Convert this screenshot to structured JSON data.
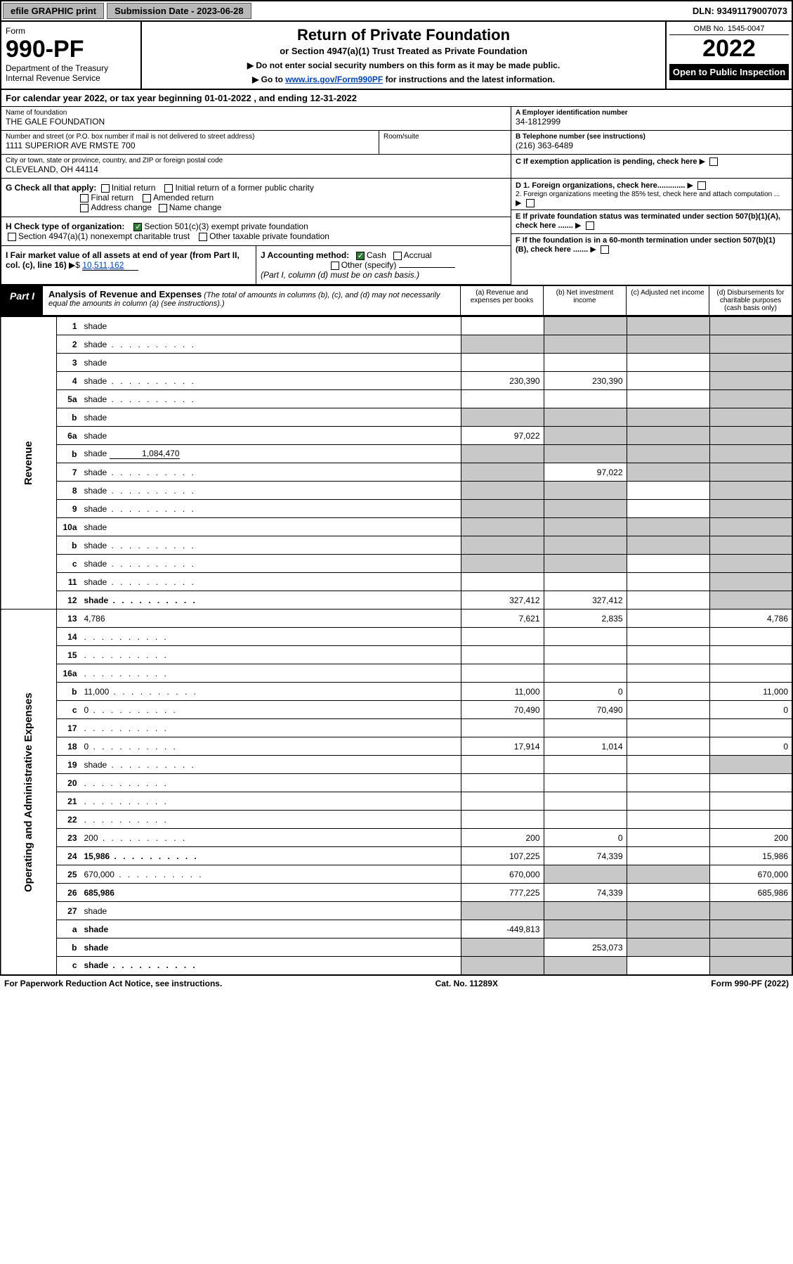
{
  "topbar": {
    "efile": "efile GRAPHIC print",
    "submission": "Submission Date - 2023-06-28",
    "dln": "DLN: 93491179007073"
  },
  "header": {
    "form_label": "Form",
    "form_no": "990-PF",
    "dept": "Department of the Treasury",
    "irs": "Internal Revenue Service",
    "title": "Return of Private Foundation",
    "subtitle": "or Section 4947(a)(1) Trust Treated as Private Foundation",
    "note1": "▶ Do not enter social security numbers on this form as it may be made public.",
    "note2_pre": "▶ Go to ",
    "note2_link": "www.irs.gov/Form990PF",
    "note2_post": " for instructions and the latest information.",
    "omb": "OMB No. 1545-0047",
    "year": "2022",
    "open": "Open to Public Inspection"
  },
  "calyear": "For calendar year 2022, or tax year beginning 01-01-2022                              , and ending 12-31-2022",
  "ident": {
    "name_lbl": "Name of foundation",
    "name": "THE GALE FOUNDATION",
    "addr_lbl": "Number and street (or P.O. box number if mail is not delivered to street address)",
    "addr": "1111 SUPERIOR AVE RMSTE 700",
    "room_lbl": "Room/suite",
    "city_lbl": "City or town, state or province, country, and ZIP or foreign postal code",
    "city": "CLEVELAND, OH  44114",
    "a_lbl": "A Employer identification number",
    "a_val": "34-1812999",
    "b_lbl": "B Telephone number (see instructions)",
    "b_val": "(216) 363-6489",
    "c_lbl": "C If exemption application is pending, check here",
    "d1": "D 1. Foreign organizations, check here.............",
    "d2": "2. Foreign organizations meeting the 85% test, check here and attach computation ...",
    "e_lbl": "E  If private foundation status was terminated under section 507(b)(1)(A), check here .......",
    "f_lbl": "F  If the foundation is in a 60-month termination under section 507(b)(1)(B), check here ......."
  },
  "checks": {
    "g_lbl": "G Check all that apply:",
    "g_opts": [
      "Initial return",
      "Initial return of a former public charity",
      "Final return",
      "Amended return",
      "Address change",
      "Name change"
    ],
    "h_lbl": "H Check type of organization:",
    "h1": "Section 501(c)(3) exempt private foundation",
    "h2": "Section 4947(a)(1) nonexempt charitable trust",
    "h3": "Other taxable private foundation",
    "i_lbl": "I Fair market value of all assets at end of year (from Part II, col. (c), line 16)",
    "i_val": "10,511,162",
    "j_lbl": "J Accounting method:",
    "j_cash": "Cash",
    "j_accrual": "Accrual",
    "j_other": "Other (specify)",
    "j_note": "(Part I, column (d) must be on cash basis.)"
  },
  "part1": {
    "label": "Part I",
    "title": "Analysis of Revenue and Expenses",
    "note": "(The total of amounts in columns (b), (c), and (d) may not necessarily equal the amounts in column (a) (see instructions).)",
    "col_a": "(a)  Revenue and expenses per books",
    "col_b": "(b)  Net investment income",
    "col_c": "(c)  Adjusted net income",
    "col_d": "(d)  Disbursements for charitable purposes (cash basis only)"
  },
  "sections": {
    "revenue": "Revenue",
    "expenses": "Operating and Administrative Expenses"
  },
  "rows": [
    {
      "n": "1",
      "d": "shade",
      "a": "",
      "b": "shade",
      "c": "shade"
    },
    {
      "n": "2",
      "d": "shade",
      "dots": true,
      "a": "shade",
      "b": "shade",
      "c": "shade"
    },
    {
      "n": "3",
      "d": "shade",
      "a": "",
      "b": "",
      "c": ""
    },
    {
      "n": "4",
      "d": "shade",
      "dots": true,
      "a": "230,390",
      "b": "230,390",
      "c": ""
    },
    {
      "n": "5a",
      "d": "shade",
      "dots": true,
      "a": "",
      "b": "",
      "c": ""
    },
    {
      "n": "b",
      "d": "shade",
      "a": "shade",
      "b": "shade",
      "c": "shade"
    },
    {
      "n": "6a",
      "d": "shade",
      "a": "97,022",
      "b": "shade",
      "c": "shade"
    },
    {
      "n": "b",
      "d": "shade",
      "extra": "1,084,470",
      "a": "shade",
      "b": "shade",
      "c": "shade"
    },
    {
      "n": "7",
      "d": "shade",
      "dots": true,
      "a": "shade",
      "b": "97,022",
      "c": "shade"
    },
    {
      "n": "8",
      "d": "shade",
      "dots": true,
      "a": "shade",
      "b": "shade",
      "c": ""
    },
    {
      "n": "9",
      "d": "shade",
      "dots": true,
      "a": "shade",
      "b": "shade",
      "c": ""
    },
    {
      "n": "10a",
      "d": "shade",
      "a": "shade",
      "b": "shade",
      "c": "shade"
    },
    {
      "n": "b",
      "d": "shade",
      "dots": true,
      "a": "shade",
      "b": "shade",
      "c": "shade"
    },
    {
      "n": "c",
      "d": "shade",
      "dots": true,
      "a": "shade",
      "b": "shade",
      "c": ""
    },
    {
      "n": "11",
      "d": "shade",
      "dots": true,
      "a": "",
      "b": "",
      "c": ""
    },
    {
      "n": "12",
      "d": "shade",
      "dots": true,
      "bold": true,
      "a": "327,412",
      "b": "327,412",
      "c": ""
    },
    {
      "n": "13",
      "d": "4,786",
      "a": "7,621",
      "b": "2,835",
      "c": ""
    },
    {
      "n": "14",
      "d": "",
      "dots": true,
      "a": "",
      "b": "",
      "c": ""
    },
    {
      "n": "15",
      "d": "",
      "dots": true,
      "a": "",
      "b": "",
      "c": ""
    },
    {
      "n": "16a",
      "d": "",
      "dots": true,
      "a": "",
      "b": "",
      "c": ""
    },
    {
      "n": "b",
      "d": "11,000",
      "dots": true,
      "a": "11,000",
      "b": "0",
      "c": ""
    },
    {
      "n": "c",
      "d": "0",
      "dots": true,
      "a": "70,490",
      "b": "70,490",
      "c": ""
    },
    {
      "n": "17",
      "d": "",
      "dots": true,
      "a": "",
      "b": "",
      "c": ""
    },
    {
      "n": "18",
      "d": "0",
      "dots": true,
      "a": "17,914",
      "b": "1,014",
      "c": ""
    },
    {
      "n": "19",
      "d": "shade",
      "dots": true,
      "a": "",
      "b": "",
      "c": ""
    },
    {
      "n": "20",
      "d": "",
      "dots": true,
      "a": "",
      "b": "",
      "c": ""
    },
    {
      "n": "21",
      "d": "",
      "dots": true,
      "a": "",
      "b": "",
      "c": ""
    },
    {
      "n": "22",
      "d": "",
      "dots": true,
      "a": "",
      "b": "",
      "c": ""
    },
    {
      "n": "23",
      "d": "200",
      "dots": true,
      "a": "200",
      "b": "0",
      "c": ""
    },
    {
      "n": "24",
      "d": "15,986",
      "dots": true,
      "bold": true,
      "a": "107,225",
      "b": "74,339",
      "c": ""
    },
    {
      "n": "25",
      "d": "670,000",
      "dots": true,
      "a": "670,000",
      "b": "shade",
      "c": "shade"
    },
    {
      "n": "26",
      "d": "685,986",
      "bold": true,
      "a": "777,225",
      "b": "74,339",
      "c": ""
    },
    {
      "n": "27",
      "d": "shade",
      "a": "shade",
      "b": "shade",
      "c": "shade"
    },
    {
      "n": "a",
      "d": "shade",
      "bold": true,
      "a": "-449,813",
      "b": "shade",
      "c": "shade"
    },
    {
      "n": "b",
      "d": "shade",
      "bold": true,
      "a": "shade",
      "b": "253,073",
      "c": "shade"
    },
    {
      "n": "c",
      "d": "shade",
      "dots": true,
      "bold": true,
      "a": "shade",
      "b": "shade",
      "c": ""
    }
  ],
  "footer": {
    "left": "For Paperwork Reduction Act Notice, see instructions.",
    "mid": "Cat. No. 11289X",
    "right": "Form 990-PF (2022)"
  },
  "colors": {
    "shade": "#c8c8c8",
    "link": "#0645ad",
    "check": "#2e7d32"
  }
}
